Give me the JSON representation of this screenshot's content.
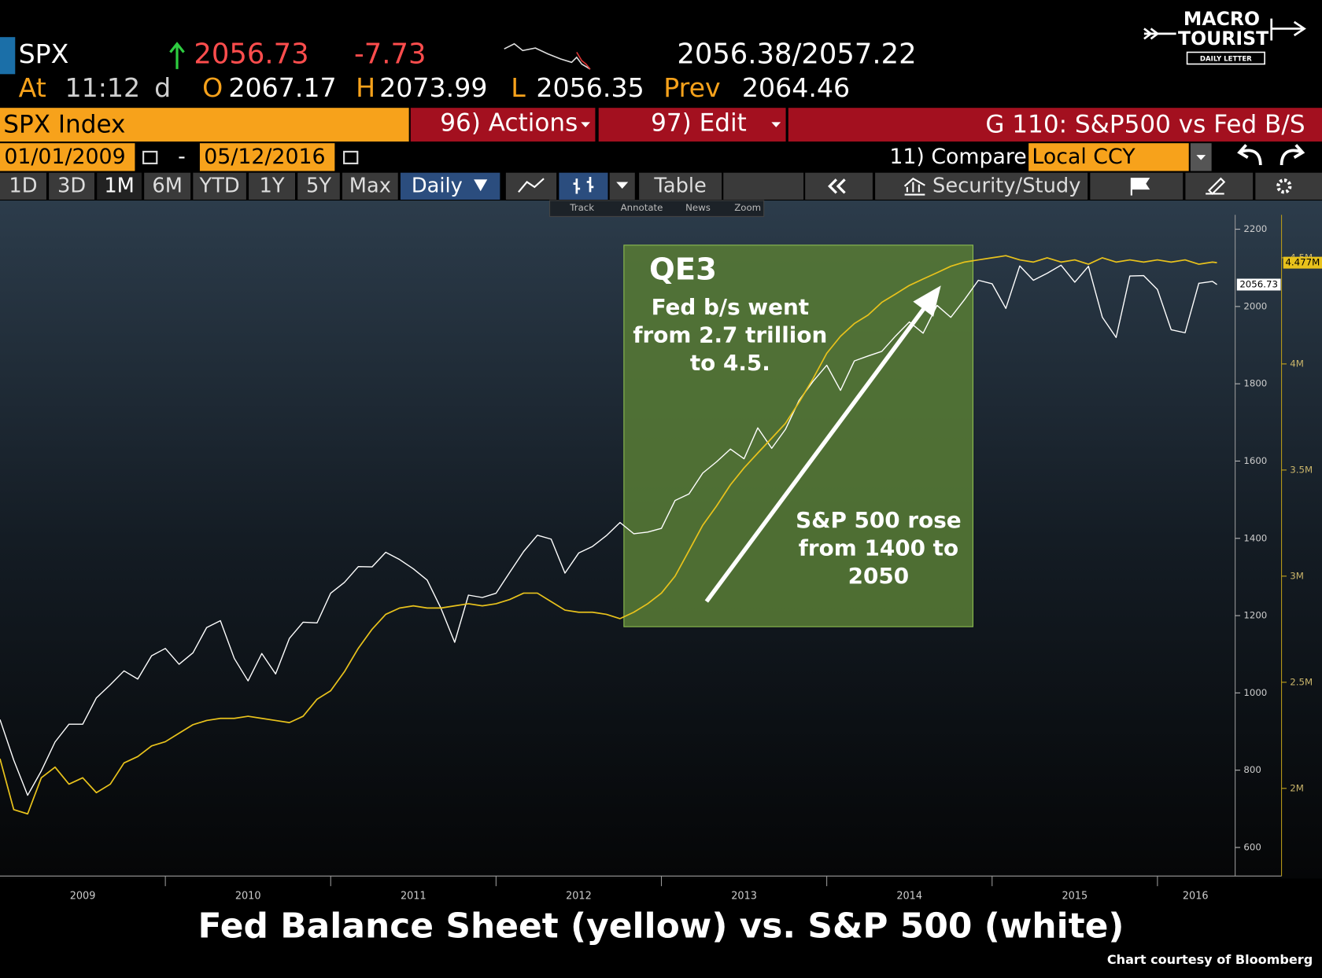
{
  "header": {
    "ticker": "SPX",
    "price": 2056.73,
    "change": -7.73,
    "bid_ask": "2056.38/2057.22",
    "time_label": "At",
    "time": "11:12",
    "time_flag": "d",
    "open_label": "O",
    "open": 2067.17,
    "high_label": "H",
    "high": 2073.99,
    "low_label": "L",
    "low": 2056.35,
    "prev_label": "Prev",
    "prev": 2064.46
  },
  "toolbar": {
    "security": "SPX Index",
    "actions": "96) Actions",
    "edit": "97) Edit",
    "graph": "G 110: S&P500 vs Fed B/S",
    "start_date": "01/01/2009",
    "date_sep": "-",
    "end_date": "05/12/2016",
    "compare": "11) Compare",
    "currency": "Local CCY",
    "ranges": [
      "1D",
      "3D",
      "1M",
      "6M",
      "YTD",
      "1Y",
      "5Y",
      "Max"
    ],
    "frequency": "Daily",
    "table": "Table",
    "study": "Security/Study",
    "tools": [
      "Track",
      "Annotate",
      "News",
      "Zoom"
    ]
  },
  "logo": {
    "line1": "MACRO",
    "line2": "TOURIST",
    "line3": "DAILY LETTER"
  },
  "chart_data": {
    "type": "line",
    "title": "Fed Balance Sheet (yellow) vs. S&P 500 (white)",
    "credit": "Chart courtesy of Bloomberg",
    "x": [
      2009,
      2009.083,
      2009.167,
      2009.25,
      2009.333,
      2009.417,
      2009.5,
      2009.583,
      2009.667,
      2009.75,
      2009.833,
      2009.917,
      2010,
      2010.083,
      2010.167,
      2010.25,
      2010.333,
      2010.417,
      2010.5,
      2010.583,
      2010.667,
      2010.75,
      2010.833,
      2010.917,
      2011,
      2011.083,
      2011.167,
      2011.25,
      2011.333,
      2011.417,
      2011.5,
      2011.583,
      2011.667,
      2011.75,
      2011.833,
      2011.917,
      2012,
      2012.083,
      2012.167,
      2012.25,
      2012.333,
      2012.417,
      2012.5,
      2012.583,
      2012.667,
      2012.75,
      2012.833,
      2012.917,
      2013,
      2013.083,
      2013.167,
      2013.25,
      2013.333,
      2013.417,
      2013.5,
      2013.583,
      2013.667,
      2013.75,
      2013.833,
      2013.917,
      2014,
      2014.083,
      2014.167,
      2014.25,
      2014.333,
      2014.417,
      2014.5,
      2014.583,
      2014.667,
      2014.75,
      2014.833,
      2014.917,
      2015,
      2015.083,
      2015.167,
      2015.25,
      2015.333,
      2015.417,
      2015.5,
      2015.583,
      2015.667,
      2015.75,
      2015.833,
      2015.917,
      2016,
      2016.083,
      2016.167,
      2016.25,
      2016.333,
      2016.36
    ],
    "series": [
      {
        "color": "#ffffff",
        "tag": "2056.73",
        "values": [
          931,
          826,
          735,
          798,
          873,
          919,
          919,
          987,
          1021,
          1057,
          1036,
          1096,
          1115,
          1074,
          1104,
          1169,
          1187,
          1089,
          1031,
          1102,
          1049,
          1141,
          1183,
          1181,
          1258,
          1286,
          1327,
          1326,
          1364,
          1345,
          1321,
          1292,
          1219,
          1131,
          1253,
          1247,
          1258,
          1312,
          1366,
          1408,
          1398,
          1310,
          1362,
          1379,
          1407,
          1441,
          1412,
          1416,
          1426,
          1498,
          1515,
          1569,
          1598,
          1631,
          1606,
          1686,
          1633,
          1682,
          1757,
          1806,
          1848,
          1783,
          1859,
          1872,
          1884,
          1924,
          1960,
          1931,
          2003,
          1972,
          2018,
          2068,
          2059,
          1995,
          2105,
          2068,
          2086,
          2107,
          2063,
          2104,
          1972,
          1920,
          2079,
          2080,
          2044,
          1940,
          1932,
          2060,
          2065,
          2056.73
        ]
      },
      {
        "color": "#e8c21c",
        "axis": "y2",
        "tag": "4.477M",
        "values": [
          2140000,
          1900000,
          1880000,
          2050000,
          2100000,
          2020000,
          2050000,
          1980000,
          2020000,
          2120000,
          2150000,
          2200000,
          2220000,
          2260000,
          2300000,
          2320000,
          2330000,
          2330000,
          2340000,
          2330000,
          2320000,
          2310000,
          2340000,
          2420000,
          2460000,
          2550000,
          2660000,
          2750000,
          2820000,
          2850000,
          2860000,
          2850000,
          2850000,
          2860000,
          2870000,
          2860000,
          2870000,
          2890000,
          2920000,
          2920000,
          2880000,
          2840000,
          2830000,
          2830000,
          2820000,
          2800000,
          2830000,
          2870000,
          2920000,
          3000000,
          3120000,
          3240000,
          3330000,
          3430000,
          3510000,
          3580000,
          3650000,
          3720000,
          3820000,
          3930000,
          4050000,
          4130000,
          4190000,
          4230000,
          4290000,
          4330000,
          4370000,
          4400000,
          4430000,
          4460000,
          4480000,
          4490000,
          4500000,
          4510000,
          4490000,
          4480000,
          4500000,
          4480000,
          4490000,
          4470000,
          4500000,
          4480000,
          4490000,
          4480000,
          4490000,
          4480000,
          4490000,
          4470000,
          4480000,
          4477000
        ]
      }
    ],
    "xlim": [
      2009,
      2016.47
    ],
    "xticks": [
      {
        "value": 2009.5,
        "label": "2009"
      },
      {
        "value": 2010.5,
        "label": "2010"
      },
      {
        "value": 2011.5,
        "label": "2011"
      },
      {
        "value": 2012.5,
        "label": "2012"
      },
      {
        "value": 2013.5,
        "label": "2013"
      },
      {
        "value": 2014.5,
        "label": "2014"
      },
      {
        "value": 2015.5,
        "label": "2015"
      },
      {
        "value": 2016.23,
        "label": "2016"
      }
    ],
    "xticks_minor": [
      2010,
      2011,
      2012,
      2013,
      2014,
      2015,
      2016
    ],
    "ylim": [
      526,
      2270
    ],
    "yticks": [
      600,
      800,
      1000,
      1200,
      1400,
      1600,
      1800,
      2000,
      2200
    ],
    "y2lim": [
      1587000,
      4762000
    ],
    "y2ticks": [
      {
        "value": 2000000,
        "label": "2M"
      },
      {
        "value": 2500000,
        "label": "2.5M"
      },
      {
        "value": 3000000,
        "label": "3M"
      },
      {
        "value": 3500000,
        "label": "3.5M"
      },
      {
        "value": 4000000,
        "label": "4M"
      },
      {
        "value": 4500000,
        "label": "4.5M"
      }
    ],
    "annotations": [
      {
        "text": "QE3"
      },
      {
        "lines": [
          "Fed b/s went",
          "from 2.7 trillion",
          "to 4.5."
        ]
      },
      {
        "lines": [
          "S&P 500 rose",
          "from 1400 to",
          "2050"
        ]
      }
    ]
  }
}
